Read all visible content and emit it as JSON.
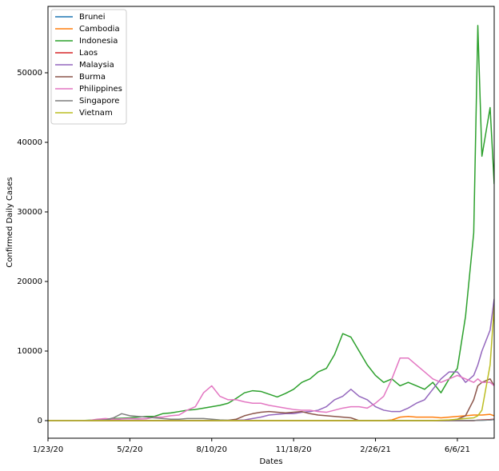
{
  "chart_data": {
    "type": "line",
    "xlabel": "Dates",
    "ylabel": "Confirmed Daily Cases",
    "x": [
      "1/23/20",
      "2/2/20",
      "2/12/20",
      "2/22/20",
      "3/3/20",
      "3/13/20",
      "3/23/20",
      "4/2/20",
      "4/12/20",
      "4/22/20",
      "5/2/20",
      "5/12/20",
      "5/22/20",
      "6/1/20",
      "6/11/20",
      "6/21/20",
      "7/1/20",
      "7/11/20",
      "7/21/20",
      "7/31/20",
      "8/10/20",
      "8/20/20",
      "8/30/20",
      "9/9/20",
      "9/19/20",
      "9/29/20",
      "10/9/20",
      "10/19/20",
      "10/29/20",
      "11/8/20",
      "11/18/20",
      "11/28/20",
      "12/8/20",
      "12/18/20",
      "12/28/20",
      "1/7/21",
      "1/17/21",
      "1/27/21",
      "2/6/21",
      "2/16/21",
      "2/26/21",
      "3/8/21",
      "3/18/21",
      "3/28/21",
      "4/7/21",
      "4/17/21",
      "4/27/21",
      "5/7/21",
      "5/17/21",
      "5/27/21",
      "6/6/21",
      "6/16/21",
      "6/26/21",
      "7/1/21",
      "7/6/21",
      "7/16/21",
      "7/21/21"
    ],
    "xlim": [
      "1/23/20",
      "7/21/21"
    ],
    "xticks": [
      "1/23/20",
      "5/2/20",
      "8/10/20",
      "11/18/20",
      "2/26/21",
      "6/6/21"
    ],
    "ylim": [
      -2530,
      59540
    ],
    "yticks": [
      0,
      10000,
      20000,
      30000,
      40000,
      50000
    ],
    "legend": "upper left",
    "series": [
      {
        "name": "Brunei",
        "color": "#1f77b4",
        "values": [
          0,
          0,
          0,
          0,
          0,
          0,
          0,
          0,
          0,
          0,
          0,
          0,
          0,
          0,
          0,
          0,
          0,
          0,
          0,
          0,
          0,
          0,
          0,
          0,
          0,
          0,
          0,
          0,
          0,
          0,
          0,
          0,
          0,
          0,
          0,
          0,
          0,
          0,
          0,
          0,
          0,
          0,
          0,
          0,
          0,
          0,
          0,
          0,
          0,
          0,
          0,
          0,
          0,
          50,
          50,
          100,
          150
        ]
      },
      {
        "name": "Cambodia",
        "color": "#ff7f0e",
        "values": [
          0,
          0,
          0,
          0,
          0,
          0,
          0,
          0,
          0,
          0,
          0,
          0,
          0,
          0,
          0,
          0,
          0,
          0,
          0,
          0,
          0,
          0,
          0,
          0,
          0,
          0,
          0,
          0,
          0,
          0,
          0,
          0,
          0,
          0,
          0,
          0,
          0,
          0,
          0,
          0,
          0,
          0,
          100,
          500,
          600,
          500,
          500,
          500,
          400,
          500,
          600,
          700,
          800,
          800,
          800,
          900,
          700
        ]
      },
      {
        "name": "Indonesia",
        "color": "#2ca02c",
        "values": [
          0,
          0,
          0,
          0,
          0,
          50,
          100,
          150,
          300,
          350,
          400,
          500,
          600,
          600,
          1000,
          1100,
          1300,
          1500,
          1600,
          1800,
          2000,
          2200,
          2500,
          3200,
          4000,
          4300,
          4200,
          3800,
          3400,
          3900,
          4500,
          5500,
          6000,
          7000,
          7500,
          9500,
          12500,
          12000,
          10000,
          8000,
          6500,
          5500,
          6000,
          5000,
          5500,
          5000,
          4500,
          5500,
          4000,
          6000,
          7500,
          15000,
          27000,
          56800,
          38000,
          45000,
          34000
        ]
      },
      {
        "name": "Laos",
        "color": "#d62728",
        "values": [
          0,
          0,
          0,
          0,
          0,
          0,
          0,
          0,
          0,
          0,
          0,
          0,
          0,
          0,
          0,
          0,
          0,
          0,
          0,
          0,
          0,
          0,
          0,
          0,
          0,
          0,
          0,
          0,
          0,
          0,
          0,
          0,
          0,
          0,
          0,
          0,
          0,
          0,
          0,
          0,
          0,
          0,
          0,
          0,
          0,
          0,
          0,
          0,
          0,
          0,
          0,
          0,
          0,
          50,
          100,
          150,
          200
        ]
      },
      {
        "name": "Malaysia",
        "color": "#9467bd",
        "values": [
          0,
          0,
          0,
          0,
          0,
          0,
          150,
          150,
          150,
          50,
          50,
          50,
          30,
          20,
          20,
          10,
          10,
          10,
          10,
          20,
          20,
          20,
          20,
          60,
          100,
          300,
          500,
          800,
          900,
          1000,
          1000,
          1200,
          1300,
          1500,
          2000,
          3000,
          3500,
          4500,
          3500,
          3000,
          2000,
          1500,
          1300,
          1300,
          1800,
          2500,
          3000,
          4500,
          6000,
          7000,
          7000,
          5500,
          6500,
          8000,
          10000,
          13000,
          17500
        ]
      },
      {
        "name": "Burma",
        "color": "#8c564b",
        "values": [
          0,
          0,
          0,
          0,
          0,
          0,
          0,
          0,
          0,
          0,
          0,
          0,
          0,
          0,
          0,
          0,
          0,
          0,
          0,
          0,
          0,
          0,
          50,
          200,
          700,
          1000,
          1200,
          1300,
          1200,
          1100,
          1200,
          1300,
          1000,
          800,
          700,
          600,
          500,
          400,
          0,
          0,
          0,
          0,
          0,
          0,
          0,
          0,
          0,
          0,
          0,
          0,
          200,
          700,
          3000,
          5000,
          5500,
          6000,
          5000
        ]
      },
      {
        "name": "Philippines",
        "color": "#e377c2",
        "values": [
          0,
          0,
          0,
          0,
          0,
          30,
          200,
          300,
          200,
          250,
          300,
          250,
          250,
          500,
          500,
          700,
          800,
          1500,
          2000,
          4000,
          5000,
          3500,
          3000,
          3000,
          2700,
          2500,
          2500,
          2200,
          2000,
          1800,
          1600,
          1500,
          1500,
          1300,
          1200,
          1500,
          1800,
          2000,
          2000,
          1800,
          2500,
          3500,
          6000,
          9000,
          9000,
          8000,
          7000,
          6000,
          5500,
          6000,
          6500,
          6000,
          5500,
          6000,
          5500,
          5500,
          5000
        ]
      },
      {
        "name": "Singapore",
        "color": "#7f7f7f",
        "values": [
          0,
          5,
          5,
          5,
          10,
          20,
          50,
          100,
          400,
          1000,
          700,
          600,
          500,
          400,
          300,
          200,
          200,
          300,
          300,
          300,
          200,
          100,
          50,
          30,
          20,
          10,
          10,
          10,
          10,
          10,
          10,
          10,
          10,
          10,
          10,
          10,
          10,
          10,
          10,
          10,
          10,
          10,
          10,
          10,
          10,
          10,
          10,
          10,
          10,
          10,
          20,
          20,
          30,
          40,
          50,
          100,
          150
        ]
      },
      {
        "name": "Vietnam",
        "color": "#bcbd22",
        "values": [
          0,
          0,
          0,
          0,
          0,
          0,
          0,
          0,
          0,
          0,
          0,
          0,
          0,
          0,
          0,
          0,
          0,
          0,
          0,
          0,
          0,
          0,
          0,
          0,
          0,
          0,
          0,
          0,
          0,
          0,
          0,
          0,
          0,
          0,
          0,
          0,
          0,
          0,
          0,
          0,
          0,
          0,
          0,
          0,
          0,
          0,
          0,
          0,
          50,
          100,
          200,
          300,
          400,
          700,
          1500,
          8000,
          16500
        ]
      }
    ]
  }
}
